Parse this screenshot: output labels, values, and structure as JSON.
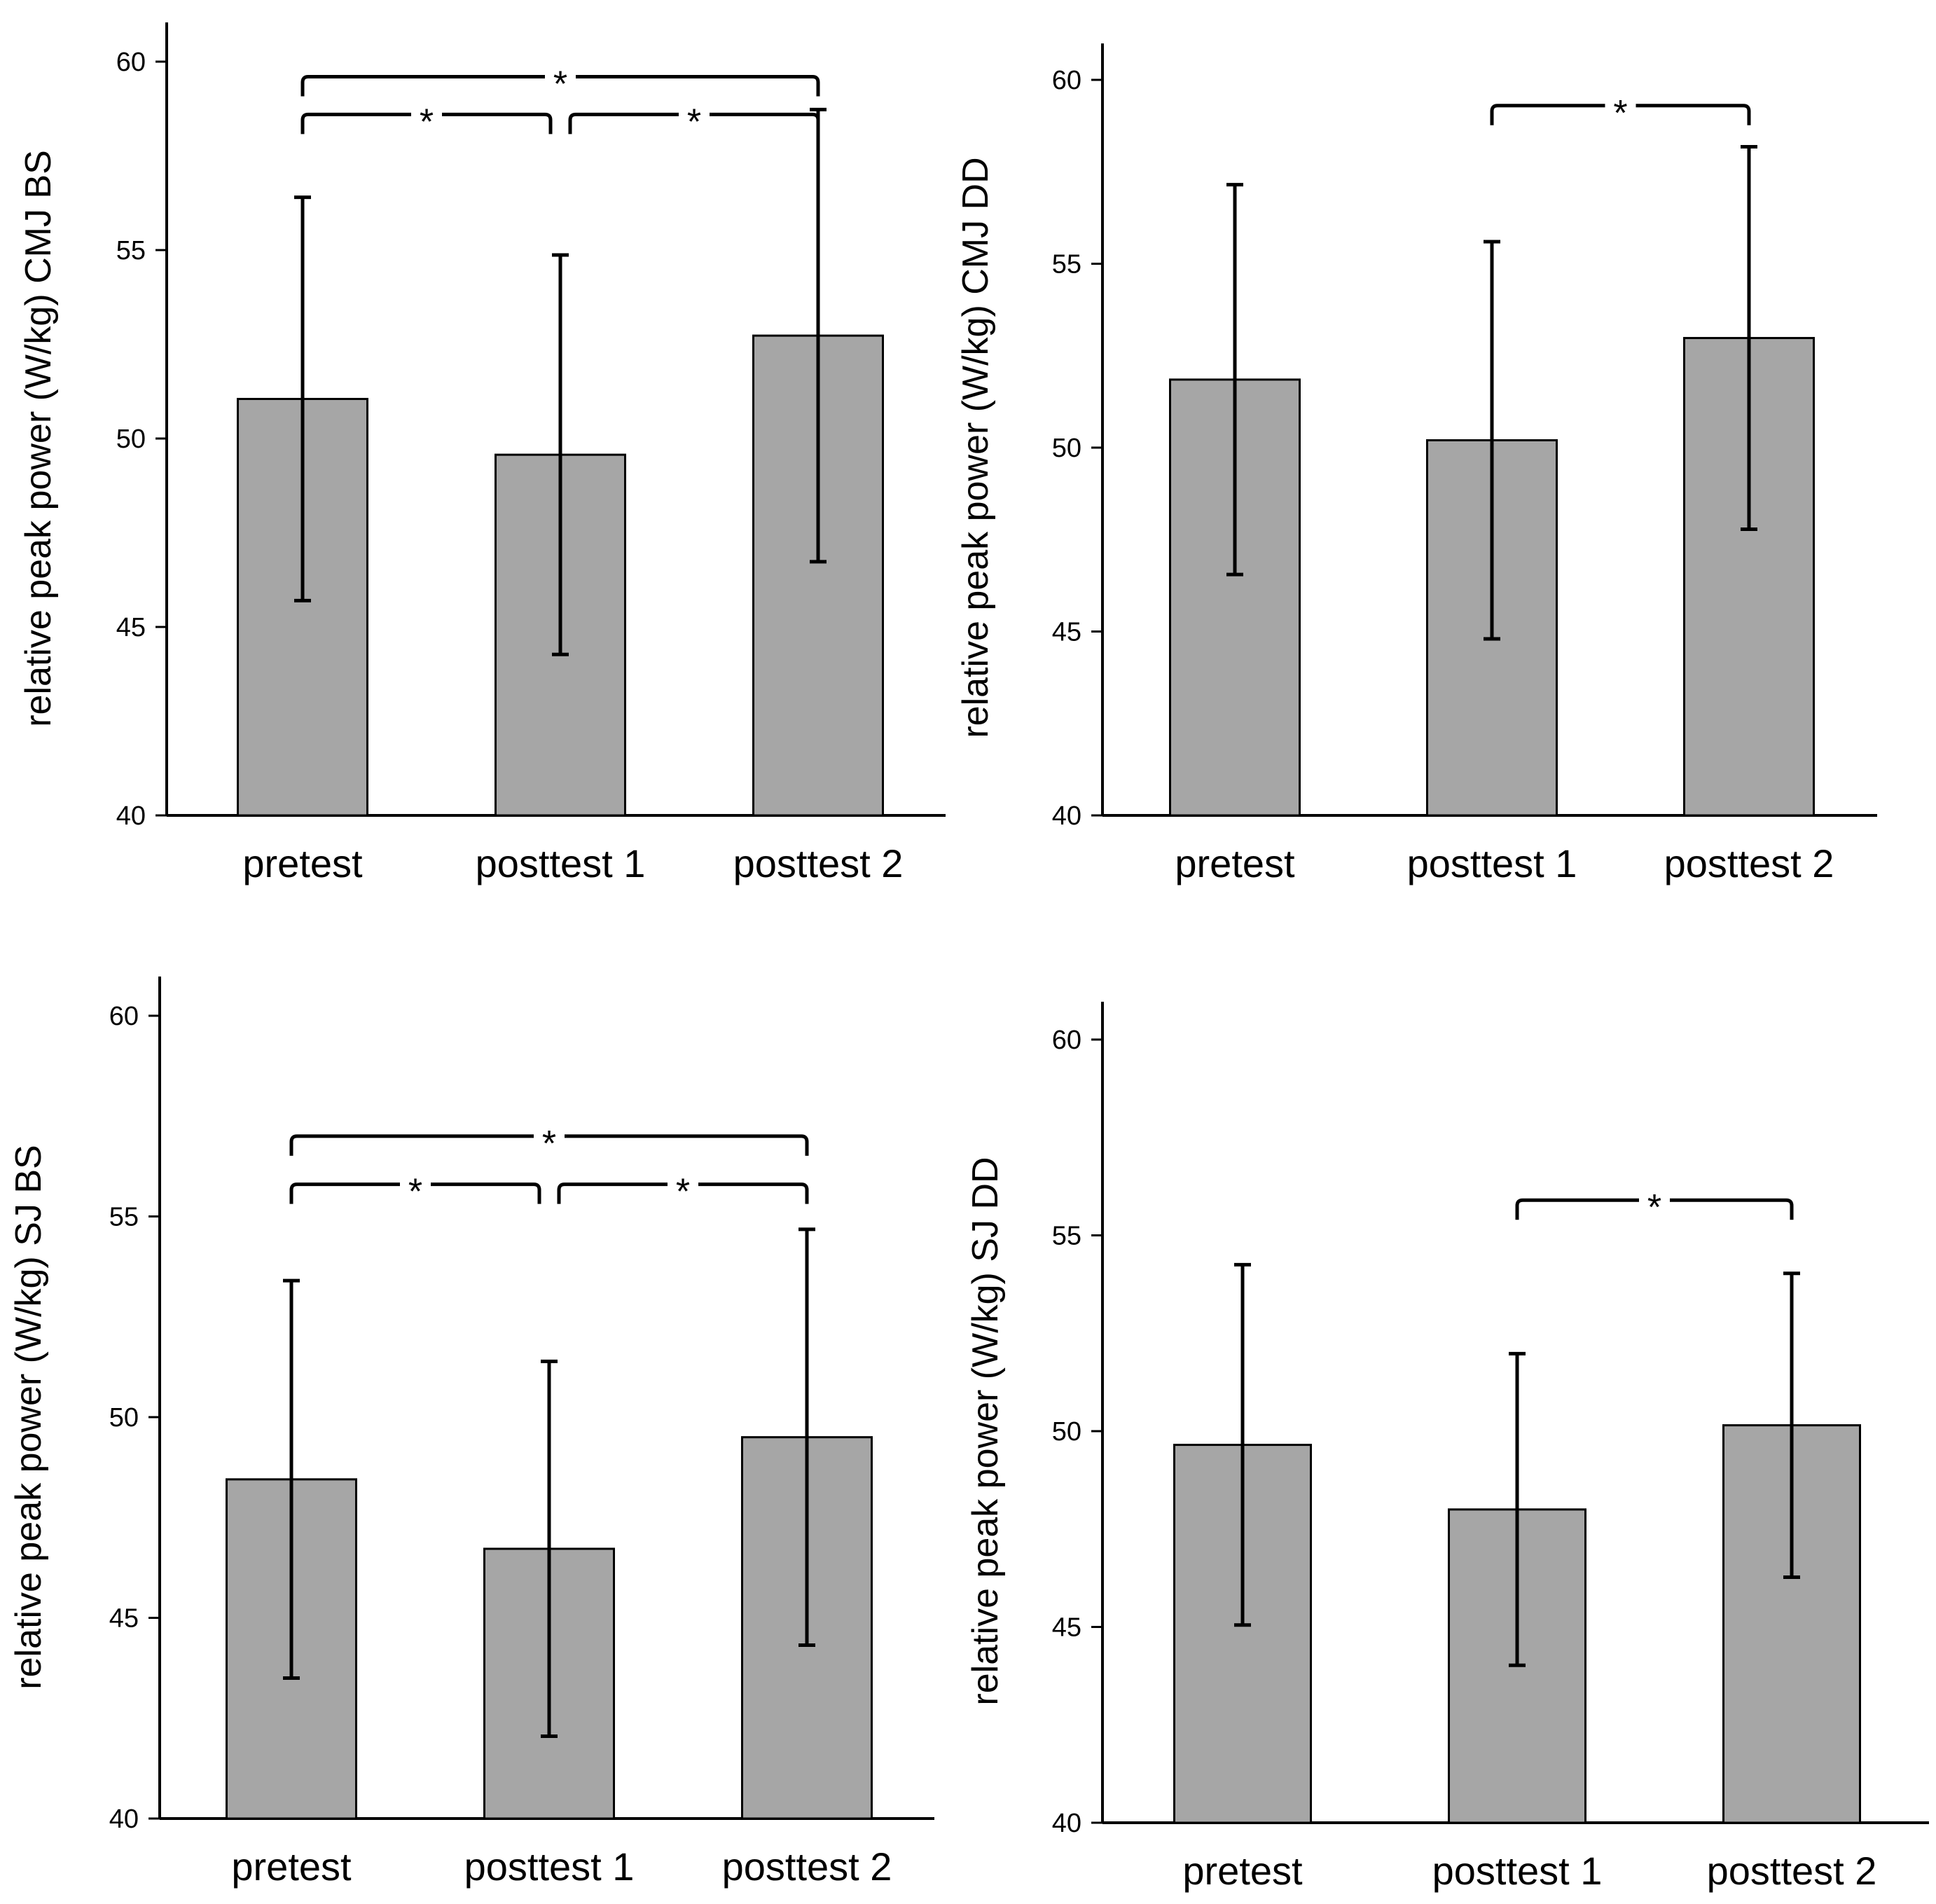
{
  "chart_data": [
    {
      "id": "cmj-bs",
      "type": "bar",
      "ylabel": "relative peak power (W/kg) CMJ BS",
      "categories": [
        "pretest",
        "posttest 1",
        "posttest 2"
      ],
      "values": [
        51.05,
        49.57,
        52.73
      ],
      "errors": [
        5.35,
        5.3,
        6.0
      ],
      "ylim": [
        40,
        60
      ],
      "yticks": [
        40,
        45,
        50,
        55,
        60
      ],
      "significance": [
        {
          "from": 0,
          "to": 2,
          "y": 59.6,
          "label": "*"
        },
        {
          "from": 0,
          "to": 1,
          "y": 58.6,
          "label": "*"
        },
        {
          "from": 1,
          "to": 2,
          "y": 58.6,
          "label": "*"
        }
      ],
      "bar_color": "#a6a6a6"
    },
    {
      "id": "cmj-dd",
      "type": "bar",
      "ylabel": "relative peak power (W/kg) CMJ DD",
      "categories": [
        "pretest",
        "posttest 1",
        "posttest 2"
      ],
      "values": [
        51.85,
        50.2,
        52.98
      ],
      "errors": [
        5.3,
        5.4,
        5.2
      ],
      "ylim": [
        40,
        60
      ],
      "yticks": [
        40,
        45,
        50,
        55,
        60
      ],
      "significance": [
        {
          "from": 1,
          "to": 2,
          "y": 59.3,
          "label": "*"
        }
      ],
      "bar_color": "#a6a6a6"
    },
    {
      "id": "sj-bs",
      "type": "bar",
      "ylabel": "relative peak power (W/kg) SJ BS",
      "categories": [
        "pretest",
        "posttest 1",
        "posttest 2"
      ],
      "values": [
        48.45,
        46.72,
        49.5
      ],
      "errors": [
        4.95,
        4.67,
        5.18
      ],
      "ylim": [
        40,
        60
      ],
      "yticks": [
        40,
        45,
        50,
        55,
        60
      ],
      "significance": [
        {
          "from": 0,
          "to": 2,
          "y": 57.0,
          "label": "*"
        },
        {
          "from": 0,
          "to": 1,
          "y": 55.8,
          "label": "*"
        },
        {
          "from": 1,
          "to": 2,
          "y": 55.8,
          "label": "*"
        }
      ],
      "bar_color": "#a6a6a6"
    },
    {
      "id": "sj-dd",
      "type": "bar",
      "ylabel": "relative peak power (W/kg) SJ DD",
      "categories": [
        "pretest",
        "posttest 1",
        "posttest 2"
      ],
      "values": [
        49.65,
        48.0,
        50.15
      ],
      "errors": [
        4.6,
        3.98,
        3.88
      ],
      "ylim": [
        40,
        60
      ],
      "yticks": [
        40,
        45,
        50,
        55,
        60
      ],
      "significance": [
        {
          "from": 1,
          "to": 2,
          "y": 55.9,
          "label": "*"
        }
      ],
      "bar_color": "#a6a6a6"
    }
  ]
}
